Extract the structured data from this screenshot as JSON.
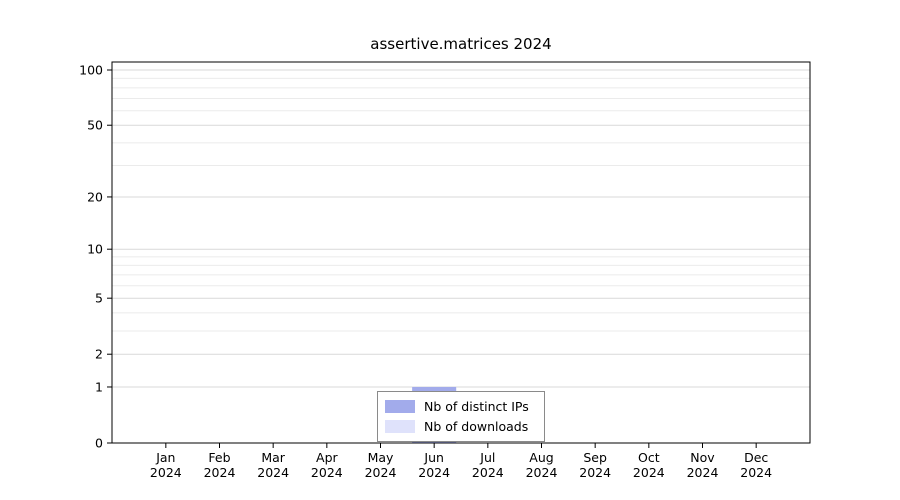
{
  "title": "assertive.matrices 2024",
  "legend": {
    "items": [
      {
        "label": "Nb of distinct IPs",
        "color": "#a2abeb"
      },
      {
        "label": "Nb of downloads",
        "color": "#dfe2fb"
      }
    ]
  },
  "chart_data": {
    "type": "bar",
    "title": "assertive.matrices 2024",
    "categories": [
      "Jan 2024",
      "Feb 2024",
      "Mar 2024",
      "Apr 2024",
      "May 2024",
      "Jun 2024",
      "Jul 2024",
      "Aug 2024",
      "Sep 2024",
      "Oct 2024",
      "Nov 2024",
      "Dec 2024"
    ],
    "series": [
      {
        "name": "Nb of downloads",
        "color": "#dfe2fb",
        "values": [
          0,
          0,
          0,
          0,
          0,
          1,
          0,
          0,
          0,
          0,
          0,
          0
        ]
      },
      {
        "name": "Nb of distinct IPs",
        "color": "#a2abeb",
        "values": [
          0,
          0,
          0,
          0,
          0,
          1,
          0,
          0,
          0,
          0,
          0,
          0
        ]
      }
    ],
    "y_ticks": [
      0,
      1,
      2,
      5,
      10,
      20,
      50,
      100
    ],
    "y_minor_ticks": [
      3,
      4,
      6,
      7,
      8,
      9,
      30,
      40,
      60,
      70,
      80,
      90
    ],
    "y_scale": "log1p",
    "ylim": [
      0,
      100
    ],
    "grid": true,
    "xlabel": "",
    "ylabel": "",
    "legend_position": "bottom-center"
  }
}
